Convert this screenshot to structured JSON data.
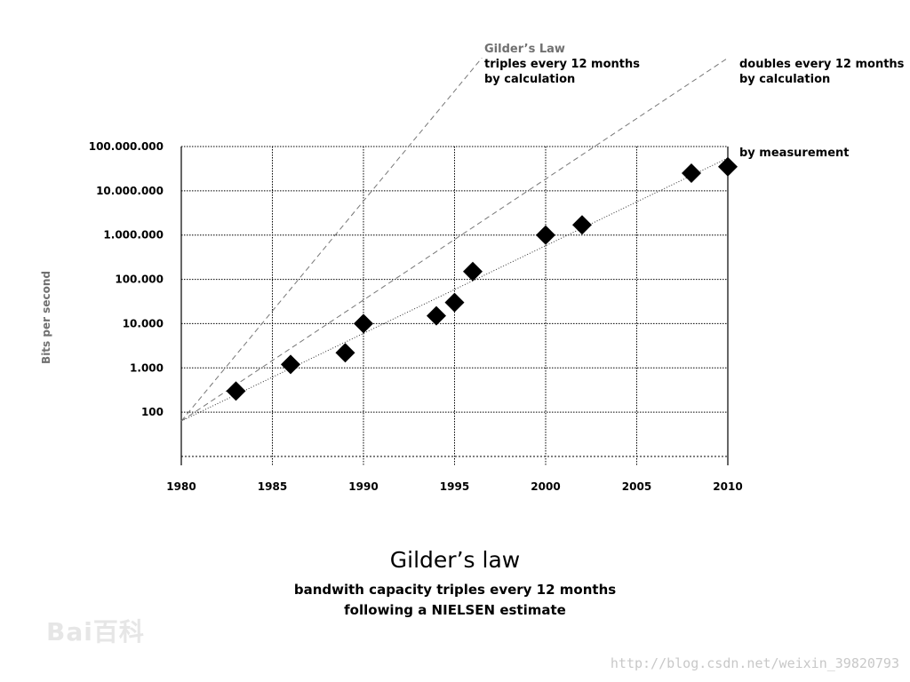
{
  "chart_data": {
    "type": "scatter",
    "title": "Gilder’s law",
    "subtitle_lines": [
      "bandwith capacity triples every 12 months",
      "following a NIELSEN estimate"
    ],
    "xlabel": "",
    "ylabel": "Bits per second",
    "x_ticks": [
      "1980",
      "1985",
      "1990",
      "1995",
      "2000",
      "2005",
      "2010"
    ],
    "y_ticks": [
      "100",
      "1.000",
      "10.000",
      "100.000",
      "1.000.000",
      "10.000.000",
      "100.000.000"
    ],
    "xlim": [
      1980,
      2010
    ],
    "ylim_log10": [
      1,
      8
    ],
    "y_scale": "log",
    "grid": true,
    "series": [
      {
        "name": "by measurement",
        "style": "diamond-markers",
        "points": [
          {
            "x": 1983,
            "y": 300
          },
          {
            "x": 1986,
            "y": 1200
          },
          {
            "x": 1989,
            "y": 2200
          },
          {
            "x": 1990,
            "y": 10000
          },
          {
            "x": 1994,
            "y": 15000
          },
          {
            "x": 1995,
            "y": 30000
          },
          {
            "x": 1996,
            "y": 150000
          },
          {
            "x": 2000,
            "y": 1000000
          },
          {
            "x": 2002,
            "y": 1700000
          },
          {
            "x": 2008,
            "y": 25000000
          },
          {
            "x": 2010,
            "y": 35000000
          }
        ]
      }
    ],
    "trend_lines": [
      {
        "name": "by measurement",
        "style": "dotted",
        "x": [
          1980,
          2010
        ],
        "y": [
          63,
          55000000
        ]
      },
      {
        "name": "doubles every 12 months by calculation",
        "style": "dashed",
        "x": [
          1980,
          2010
        ],
        "y": [
          63,
          10000000000
        ]
      },
      {
        "name": "Gilder’s Law triples every 12 months by calculation",
        "style": "dashed",
        "x": [
          1980,
          1996.5
        ],
        "y": [
          63,
          10000000000
        ]
      }
    ],
    "annotations": [
      {
        "id": "gilder",
        "lines": [
          "Gilder’s Law",
          "triples every 12 months",
          "by calculation"
        ]
      },
      {
        "id": "doubles",
        "lines": [
          "doubles every 12 months",
          "by calculation"
        ]
      },
      {
        "id": "measure",
        "lines": [
          "by measurement"
        ]
      }
    ]
  },
  "watermarks": {
    "left": "Bai百科",
    "right": "http://blog.csdn.net/weixin_39820793"
  }
}
